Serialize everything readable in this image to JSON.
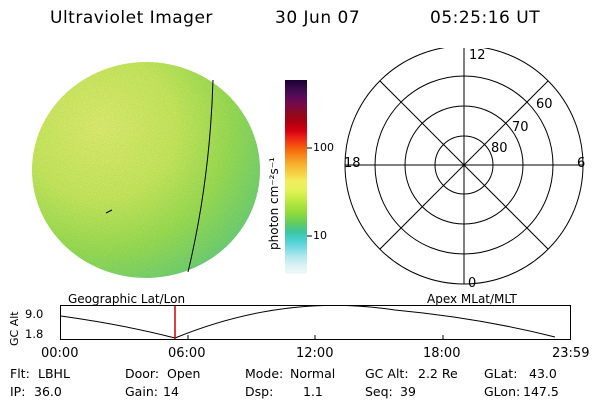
{
  "header": {
    "instrument": "Ultraviolet Imager",
    "date": "30 Jun 07",
    "time": "05:25:16 UT"
  },
  "colorbar": {
    "unit_label": "photon cm⁻²s⁻¹",
    "tick_100": "100",
    "tick_10": "10",
    "colors": [
      "#1a0033",
      "#3a0a4a",
      "#5a0a5a",
      "#7a0a44",
      "#8e0a1e",
      "#b00010",
      "#d40012",
      "#ef2a18",
      "#f45c0c",
      "#f6891a",
      "#f8b030",
      "#f6d040",
      "#f2ee60",
      "#e4f25a",
      "#c8ec44",
      "#a6e23c",
      "#86d840",
      "#62cc60",
      "#3ec6a0",
      "#4ad0d0",
      "#7edbe4",
      "#b4e8ee",
      "#dcf2f4",
      "#f2f8f8"
    ]
  },
  "polar": {
    "mlt_12": "12",
    "mlt_18": "18",
    "mlt_6": "6",
    "mlt_0": "0",
    "lat_60": "60",
    "lat_70": "70",
    "lat_80": "80"
  },
  "orbit_panel": {
    "left_label": "Geographic Lat/Lon",
    "right_label": "Apex MLat/MLT",
    "axis_label": "GC Alt",
    "y_max": "9.0",
    "y_min": "1.8",
    "x_ticks": [
      "00:00",
      "06:00",
      "12:00",
      "18:00",
      "23:59"
    ],
    "current_marker_color": "#cc0000"
  },
  "info": {
    "flt_label": "Flt:",
    "flt_value": "LBHL",
    "ip_label": "IP:",
    "ip_value": "36.0",
    "door_label": "Door:",
    "door_value": "Open",
    "gain_label": "Gain:",
    "gain_value": "14",
    "mode_label": "Mode:",
    "mode_value": "Normal",
    "dsp_label": "Dsp:",
    "dsp_value": "1.1",
    "gcalt_label": "GC Alt:",
    "gcalt_value": "2.2 Re",
    "seq_label": "Seq:",
    "seq_value": "39",
    "glat_label": "GLat:",
    "glat_value": "43.0",
    "glon_label": "GLon:",
    "glon_value": "147.5"
  }
}
